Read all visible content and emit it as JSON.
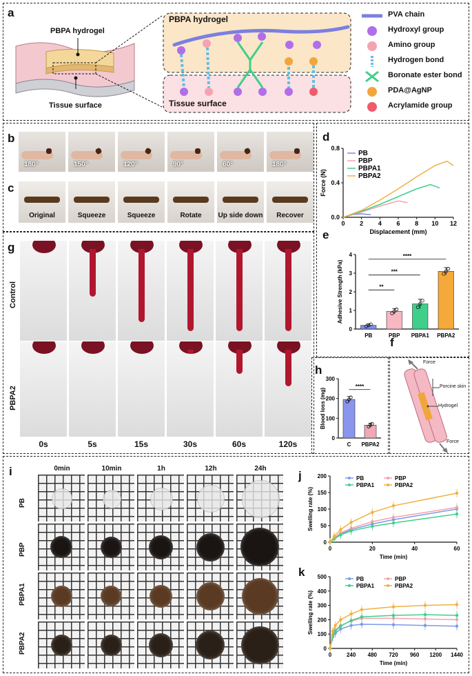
{
  "panels": {
    "a": "a",
    "b": "b",
    "c": "c",
    "d": "d",
    "e": "e",
    "f": "f",
    "g": "g",
    "h": "h",
    "i": "i",
    "j": "j",
    "k": "k"
  },
  "panel_a": {
    "hydrogel_label": "PBPA hydrogel",
    "tissue_label": "Tissue surface",
    "box_top_label": "PBPA hydrogel",
    "box_bottom_label": "Tissue surface",
    "legend": [
      {
        "label": "PVA chain",
        "color": "#7b7fe0"
      },
      {
        "label": "Hydroxyl group",
        "color": "#b06ee8"
      },
      {
        "label": "Amino group",
        "color": "#f4a3b0"
      },
      {
        "label": "Hydrogen bond",
        "color": "#5bc0e8"
      },
      {
        "label": "Boronate ester bond",
        "color": "#3ecf8a"
      },
      {
        "label": "PDA@AgNP",
        "color": "#f0a63a"
      },
      {
        "label": "Acrylamide group",
        "color": "#ef5b6c"
      }
    ]
  },
  "panel_b": {
    "captions": [
      "180°",
      "150°",
      "120°",
      "90°",
      "60°",
      "180°"
    ]
  },
  "panel_c": {
    "captions": [
      "Original",
      "Squeeze",
      "Squeeze",
      "Rotate",
      "Up side down",
      "Recover"
    ]
  },
  "panel_g": {
    "row_labels": [
      "Control",
      "PBPA2"
    ],
    "times": [
      "0s",
      "5s",
      "15s",
      "30s",
      "60s",
      "120s"
    ],
    "drip_fraction": [
      0,
      0.55,
      0.85,
      0.95,
      0.95,
      0.95
    ],
    "drip_fraction_pbpa2": [
      0,
      0,
      0,
      0.05,
      0.3,
      0.45
    ]
  },
  "panel_f": {
    "labels": {
      "force_top": "Force",
      "skin": "Porcine skin",
      "hydrogel": "Hydrogel",
      "force_bottom": "Force"
    }
  },
  "panel_i": {
    "times": [
      "0min",
      "10min",
      "1h",
      "12h",
      "24h"
    ],
    "rows": [
      {
        "label": "PB",
        "color": "#e8e8e8",
        "sizes": [
          0.45,
          0.4,
          0.5,
          0.62,
          0.85
        ]
      },
      {
        "label": "PBP",
        "color": "#1a1512",
        "sizes": [
          0.52,
          0.5,
          0.56,
          0.66,
          0.9
        ]
      },
      {
        "label": "PBPA1",
        "color": "#5a3a22",
        "sizes": [
          0.5,
          0.48,
          0.54,
          0.66,
          0.85
        ]
      },
      {
        "label": "PBPA2",
        "color": "#2a2018",
        "sizes": [
          0.5,
          0.5,
          0.56,
          0.68,
          0.88
        ]
      }
    ]
  },
  "chart_data": [
    {
      "id": "d",
      "type": "line",
      "xlabel": "Displacement (mm)",
      "ylabel": "Force (N)",
      "xlim": [
        0,
        12
      ],
      "ylim": [
        0,
        0.8
      ],
      "xticks": [
        0,
        2,
        4,
        6,
        8,
        10,
        12
      ],
      "yticks": [
        0.0,
        0.4,
        0.8
      ],
      "ytick_labels": [
        "0.0",
        "0.4",
        "0.8"
      ],
      "legend_position": "top-left",
      "series": [
        {
          "name": "PB",
          "color": "#6f8fe0",
          "x": [
            0,
            1,
            2,
            3
          ],
          "y": [
            0,
            0.03,
            0.04,
            0.03
          ]
        },
        {
          "name": "PBP",
          "color": "#f2a2ad",
          "x": [
            0,
            2,
            4,
            6,
            7
          ],
          "y": [
            0,
            0.06,
            0.13,
            0.19,
            0.17
          ]
        },
        {
          "name": "PBPA1",
          "color": "#3ecf8a",
          "x": [
            0,
            2,
            4,
            6,
            8,
            9.5,
            10.5
          ],
          "y": [
            0,
            0.07,
            0.15,
            0.24,
            0.33,
            0.38,
            0.34
          ]
        },
        {
          "name": "PBPA2",
          "color": "#f0b040",
          "x": [
            0,
            2,
            4,
            6,
            8,
            10,
            11.3,
            12
          ],
          "y": [
            0,
            0.08,
            0.2,
            0.33,
            0.47,
            0.6,
            0.65,
            0.6
          ]
        }
      ]
    },
    {
      "id": "e",
      "type": "bar",
      "ylabel": "Adhesive Strength (kPa)",
      "categories": [
        "PB",
        "PBP",
        "PBPA1",
        "PBPA2"
      ],
      "values": [
        0.2,
        0.95,
        1.35,
        3.1
      ],
      "errors": [
        0.08,
        0.15,
        0.25,
        0.2
      ],
      "colors": [
        "#7b8fe8",
        "#f7b7c3",
        "#3ecf8a",
        "#f5a93a"
      ],
      "ylim": [
        0,
        4
      ],
      "yticks": [
        0,
        1,
        2,
        3,
        4
      ],
      "significance": [
        "**",
        "***",
        "****"
      ]
    },
    {
      "id": "h",
      "type": "bar",
      "ylabel": "Blood loss (mg)",
      "categories": [
        "C",
        "PBPA2"
      ],
      "values": [
        195,
        65
      ],
      "errors": [
        15,
        10
      ],
      "colors": [
        "#8a95ee",
        "#f1a7b5"
      ],
      "ylim": [
        0,
        300
      ],
      "yticks": [
        0,
        100,
        200,
        300
      ],
      "significance": [
        "****"
      ]
    },
    {
      "id": "j",
      "type": "line",
      "xlabel": "Time (min)",
      "ylabel": "Swelling rate (%)",
      "xlim": [
        0,
        60
      ],
      "ylim": [
        0,
        200
      ],
      "xticks": [
        0,
        20,
        40,
        60
      ],
      "yticks": [
        0,
        50,
        100,
        150,
        200
      ],
      "legend_position": "top-left",
      "series": [
        {
          "name": "PB",
          "color": "#7b9ae8",
          "x": [
            0,
            2,
            5,
            10,
            20,
            30,
            60
          ],
          "y": [
            0,
            12,
            25,
            38,
            55,
            68,
            100
          ]
        },
        {
          "name": "PBP",
          "color": "#f2a2ad",
          "x": [
            0,
            2,
            5,
            10,
            20,
            30,
            60
          ],
          "y": [
            0,
            14,
            28,
            42,
            62,
            75,
            105
          ]
        },
        {
          "name": "PBPA1",
          "color": "#3ecf8a",
          "x": [
            0,
            2,
            5,
            10,
            20,
            30,
            60
          ],
          "y": [
            0,
            10,
            22,
            34,
            48,
            58,
            85
          ]
        },
        {
          "name": "PBPA2",
          "color": "#f0b040",
          "x": [
            0,
            2,
            5,
            10,
            20,
            30,
            60
          ],
          "y": [
            0,
            18,
            38,
            60,
            90,
            110,
            148
          ]
        }
      ]
    },
    {
      "id": "k",
      "type": "line",
      "xlabel": "Time (min)",
      "ylabel": "Swelling rate (%)",
      "xlim": [
        0,
        1440
      ],
      "ylim": [
        0,
        500
      ],
      "xticks": [
        0,
        240,
        480,
        720,
        960,
        1200,
        1440
      ],
      "yticks": [
        0,
        100,
        200,
        300,
        400,
        500
      ],
      "legend_position": "top-left",
      "series": [
        {
          "name": "PB",
          "color": "#7b9ae8",
          "x": [
            0,
            30,
            60,
            120,
            240,
            360,
            720,
            1080,
            1440
          ],
          "y": [
            0,
            80,
            105,
            135,
            160,
            168,
            165,
            160,
            155
          ]
        },
        {
          "name": "PBP",
          "color": "#f2a2ad",
          "x": [
            0,
            30,
            60,
            120,
            240,
            360,
            720,
            1080,
            1440
          ],
          "y": [
            0,
            100,
            130,
            160,
            190,
            210,
            210,
            205,
            200
          ]
        },
        {
          "name": "PBPA1",
          "color": "#3ecf8a",
          "x": [
            0,
            30,
            60,
            120,
            240,
            360,
            720,
            1080,
            1440
          ],
          "y": [
            0,
            90,
            120,
            155,
            195,
            220,
            230,
            235,
            230
          ]
        },
        {
          "name": "PBPA2",
          "color": "#f0b040",
          "x": [
            0,
            30,
            60,
            120,
            240,
            360,
            720,
            1080,
            1440
          ],
          "y": [
            0,
            120,
            160,
            200,
            240,
            270,
            290,
            300,
            305
          ]
        }
      ]
    }
  ]
}
